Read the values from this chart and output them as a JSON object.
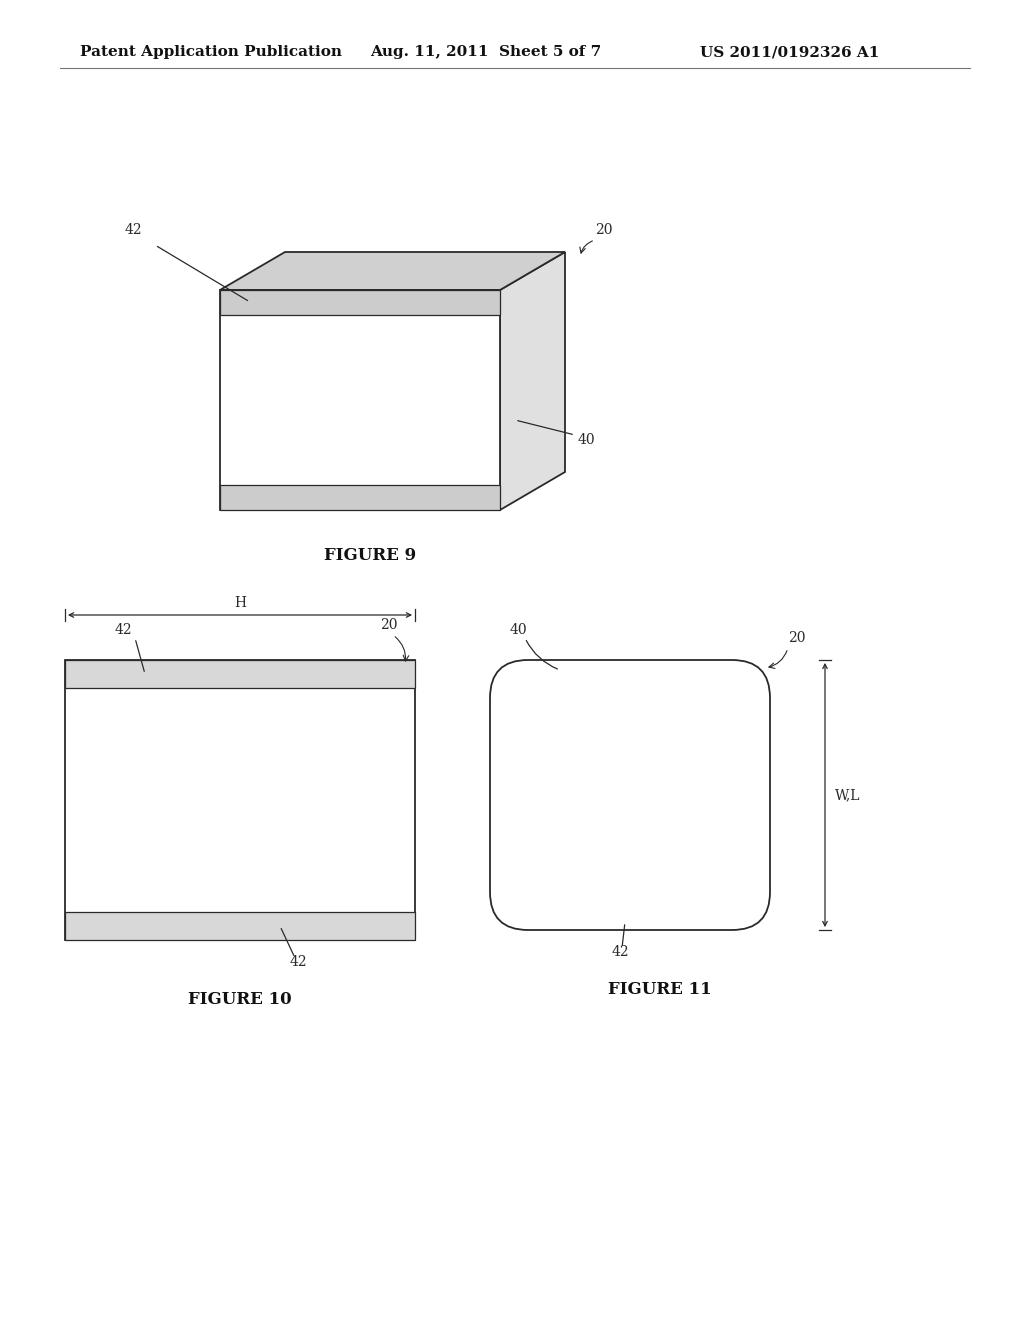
{
  "bg_color": "#ffffff",
  "header_left": "Patent Application Publication",
  "header_mid": "Aug. 11, 2011  Sheet 5 of 7",
  "header_right": "US 2011/0192326 A1",
  "line_color": "#2a2a2a",
  "line_width": 1.3
}
